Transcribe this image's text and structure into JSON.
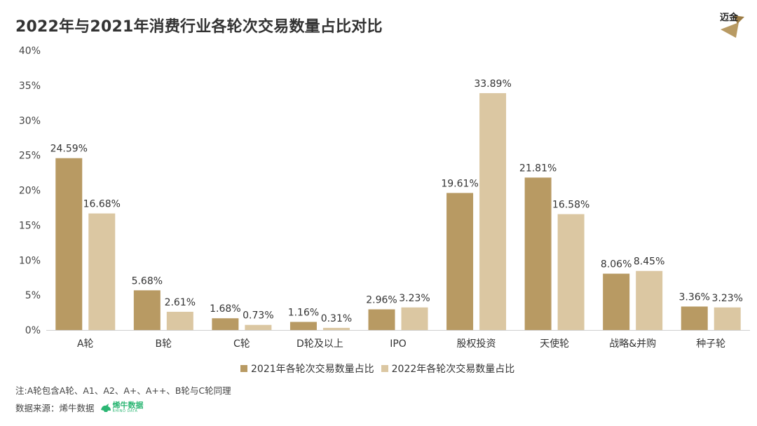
{
  "title": "2022年与2021年消费行业各轮次交易数量占比对比",
  "logo": {
    "text": "迈金"
  },
  "chart_data": {
    "type": "bar",
    "title": "2022年与2021年消费行业各轮次交易数量占比对比",
    "categories": [
      "A轮",
      "B轮",
      "C轮",
      "D轮及以上",
      "IPO",
      "股权投资",
      "天使轮",
      "战略&并购",
      "种子轮"
    ],
    "series": [
      {
        "name": "2021年各轮次交易数量占比",
        "values": [
          24.59,
          5.68,
          1.68,
          1.16,
          2.96,
          19.61,
          21.81,
          8.06,
          3.36
        ],
        "labels": [
          "24.59%",
          "5.68%",
          "1.68%",
          "1.16%",
          "2.96%",
          "19.61%",
          "21.81%",
          "8.06%",
          "3.36%"
        ],
        "color": "#b89a63"
      },
      {
        "name": "2022年各轮次交易数量占比",
        "values": [
          16.68,
          2.61,
          0.73,
          0.31,
          3.23,
          33.89,
          16.58,
          8.45,
          3.23
        ],
        "labels": [
          "16.68%",
          "2.61%",
          "0.73%",
          "0.31%",
          "3.23%",
          "33.89%",
          "16.58%",
          "8.45%",
          "3.23%"
        ],
        "color": "#dbc7a2"
      }
    ],
    "yticks": [
      "0%",
      "5%",
      "10%",
      "15%",
      "20%",
      "25%",
      "30%",
      "35%",
      "40%"
    ],
    "ylim": [
      0,
      40
    ],
    "xlabel": "",
    "ylabel": "",
    "grid": false,
    "legend_position": "bottom"
  },
  "legend": {
    "series_2021": "2021年各轮次交易数量占比",
    "series_2022": "2022年各轮次交易数量占比"
  },
  "footer": {
    "note": "注:A轮包含A轮、A1、A2、A+、A++、B轮与C轮同理",
    "source_label": "数据来源：烯牛数据",
    "source_logo_main": "烯牛数据",
    "source_logo_sub": "RHINO DATA"
  },
  "colors": {
    "series_2021": "#b89a63",
    "series_2022": "#dbc7a2",
    "brand_green": "#2bb673"
  }
}
